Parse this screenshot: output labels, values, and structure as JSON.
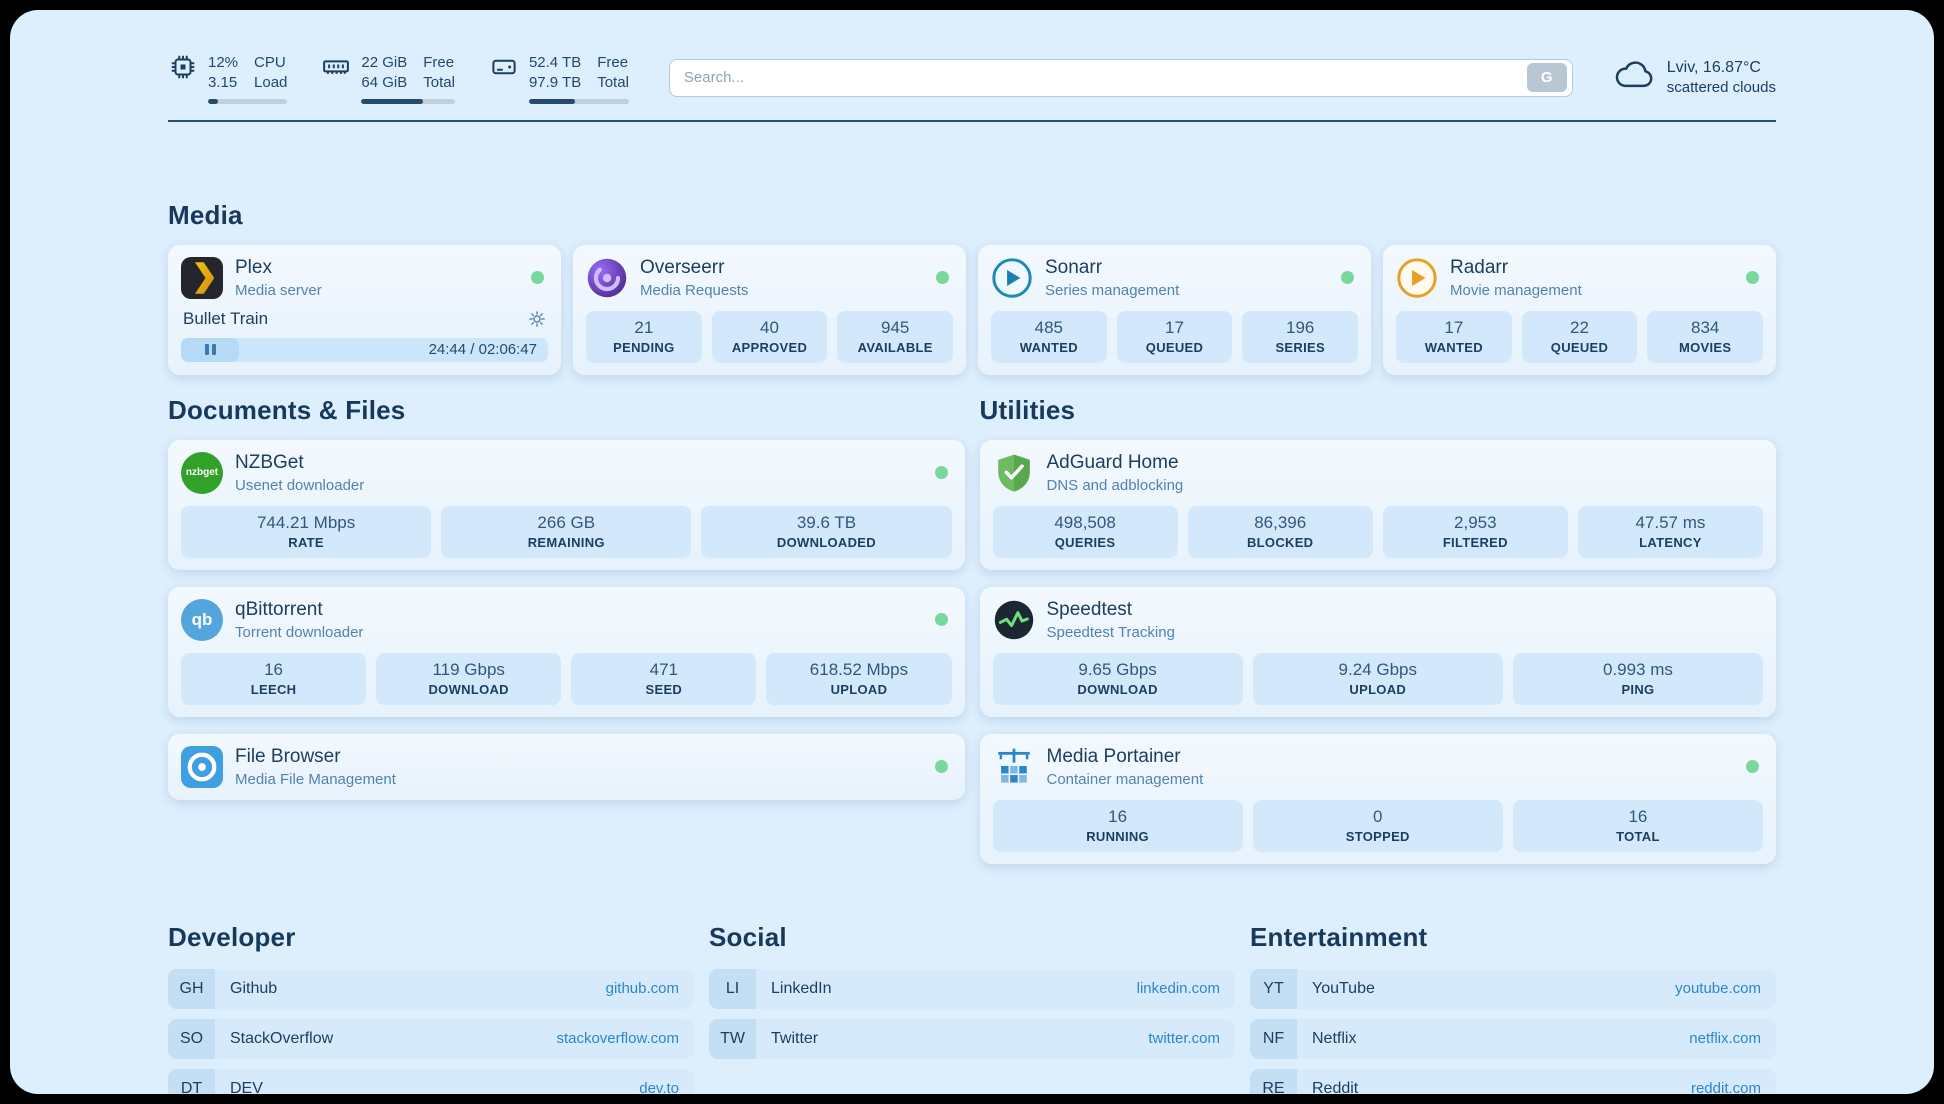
{
  "colors": {
    "background": "#ddeefd",
    "status_online": "#79d89d",
    "link": "#2e86ca",
    "accent_navy": "#1d3e60"
  },
  "topbar": {
    "widgets": [
      {
        "icon": "cpu-icon",
        "col1": [
          "12%",
          "3.15"
        ],
        "col2": [
          "CPU",
          "Load"
        ],
        "progress": 12
      },
      {
        "icon": "memory-icon",
        "col1": [
          "22 GiB",
          "64 GiB"
        ],
        "col2": [
          "Free",
          "Total"
        ],
        "progress": 66
      },
      {
        "icon": "disk-icon",
        "col1": [
          "52.4 TB",
          "97.9 TB"
        ],
        "col2": [
          "Free",
          "Total"
        ],
        "progress": 46
      }
    ],
    "search": {
      "placeholder": "Search...",
      "button_label": "G"
    },
    "weather": {
      "icon": "cloud-icon",
      "location": "Lviv, 16.87°C",
      "condition": "scattered clouds"
    }
  },
  "sections": {
    "media": {
      "title": "Media",
      "services": [
        {
          "name": "Plex",
          "desc": "Media server",
          "icon": "plex-icon",
          "online": true,
          "player": {
            "title": "Bullet Train",
            "time": "24:44 / 02:06:47"
          }
        },
        {
          "name": "Overseerr",
          "desc": "Media Requests",
          "icon": "overseerr-icon",
          "online": true,
          "stats": [
            {
              "value": "21",
              "label": "PENDING"
            },
            {
              "value": "40",
              "label": "APPROVED"
            },
            {
              "value": "945",
              "label": "AVAILABLE"
            }
          ]
        },
        {
          "name": "Sonarr",
          "desc": "Series management",
          "icon": "sonarr-icon",
          "online": true,
          "stats": [
            {
              "value": "485",
              "label": "WANTED"
            },
            {
              "value": "17",
              "label": "QUEUED"
            },
            {
              "value": "196",
              "label": "SERIES"
            }
          ]
        },
        {
          "name": "Radarr",
          "desc": "Movie management",
          "icon": "radarr-icon",
          "online": true,
          "stats": [
            {
              "value": "17",
              "label": "WANTED"
            },
            {
              "value": "22",
              "label": "QUEUED"
            },
            {
              "value": "834",
              "label": "MOVIES"
            }
          ]
        }
      ]
    },
    "documents": {
      "title": "Documents & Files",
      "services": [
        {
          "name": "NZBGet",
          "desc": "Usenet downloader",
          "icon": "nzbget-icon",
          "online": true,
          "stats": [
            {
              "value": "744.21 Mbps",
              "label": "RATE"
            },
            {
              "value": "266 GB",
              "label": "REMAINING"
            },
            {
              "value": "39.6 TB",
              "label": "DOWNLOADED"
            }
          ]
        },
        {
          "name": "qBittorrent",
          "desc": "Torrent downloader",
          "icon": "qbittorrent-icon",
          "online": true,
          "stats": [
            {
              "value": "16",
              "label": "LEECH"
            },
            {
              "value": "119 Gbps",
              "label": "DOWNLOAD"
            },
            {
              "value": "471",
              "label": "SEED"
            },
            {
              "value": "618.52 Mbps",
              "label": "UPLOAD"
            }
          ]
        },
        {
          "name": "File Browser",
          "desc": "Media File Management",
          "icon": "filebrowser-icon",
          "online": true,
          "stats": []
        }
      ]
    },
    "utilities": {
      "title": "Utilities",
      "services": [
        {
          "name": "AdGuard Home",
          "desc": "DNS and adblocking",
          "icon": "adguard-icon",
          "online": false,
          "stats": [
            {
              "value": "498,508",
              "label": "QUERIES"
            },
            {
              "value": "86,396",
              "label": "BLOCKED"
            },
            {
              "value": "2,953",
              "label": "FILTERED"
            },
            {
              "value": "47.57 ms",
              "label": "LATENCY"
            }
          ]
        },
        {
          "name": "Speedtest",
          "desc": "Speedtest Tracking",
          "icon": "speedtest-icon",
          "online": false,
          "stats": [
            {
              "value": "9.65 Gbps",
              "label": "DOWNLOAD"
            },
            {
              "value": "9.24 Gbps",
              "label": "UPLOAD"
            },
            {
              "value": "0.993 ms",
              "label": "PING"
            }
          ]
        },
        {
          "name": "Media Portainer",
          "desc": "Container management",
          "icon": "portainer-icon",
          "online": true,
          "stats": [
            {
              "value": "16",
              "label": "RUNNING"
            },
            {
              "value": "0",
              "label": "STOPPED"
            },
            {
              "value": "16",
              "label": "TOTAL"
            }
          ]
        }
      ]
    },
    "bookmarks": [
      {
        "title": "Developer",
        "items": [
          {
            "abbr": "GH",
            "name": "Github",
            "url": "github.com"
          },
          {
            "abbr": "SO",
            "name": "StackOverflow",
            "url": "stackoverflow.com"
          },
          {
            "abbr": "DT",
            "name": "DEV",
            "url": "dev.to"
          }
        ]
      },
      {
        "title": "Social",
        "items": [
          {
            "abbr": "LI",
            "name": "LinkedIn",
            "url": "linkedin.com"
          },
          {
            "abbr": "TW",
            "name": "Twitter",
            "url": "twitter.com"
          }
        ]
      },
      {
        "title": "Entertainment",
        "items": [
          {
            "abbr": "YT",
            "name": "YouTube",
            "url": "youtube.com"
          },
          {
            "abbr": "NF",
            "name": "Netflix",
            "url": "netflix.com"
          },
          {
            "abbr": "RE",
            "name": "Reddit",
            "url": "reddit.com"
          }
        ]
      }
    ]
  }
}
